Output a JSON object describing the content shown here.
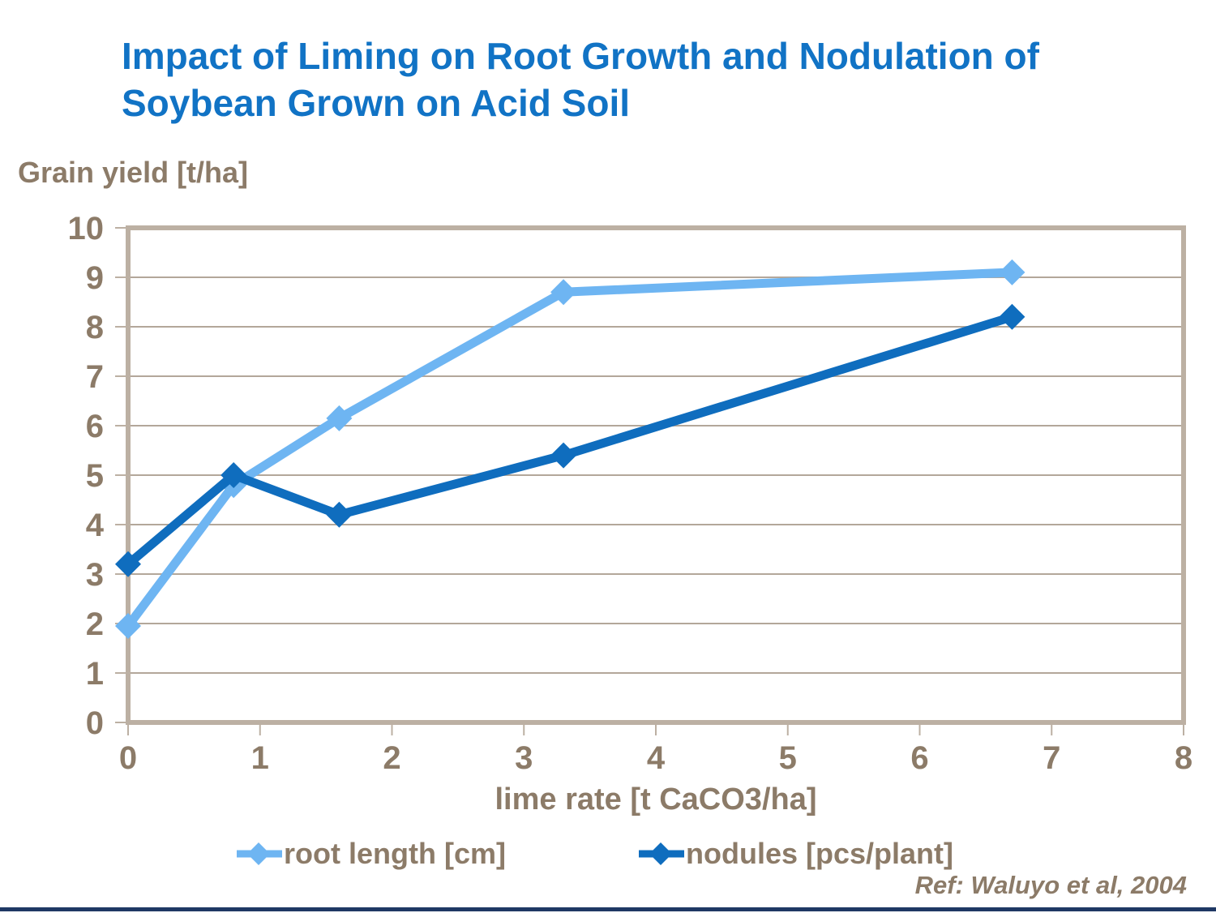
{
  "title": {
    "line1": "Impact of Liming on Root Growth and Nodulation of",
    "line2": "Soybean Grown on Acid Soil"
  },
  "colors": {
    "title_blue": "#1173C5",
    "text_brown": "#8C7B68",
    "gridline": "#B3A79A",
    "plot_border": "#BCB0A3",
    "series_root_length": "#6EB5F2",
    "series_nodules": "#0F6DBE",
    "footer_bar": "#1F3864"
  },
  "chart_data": {
    "type": "line",
    "title": "Impact of Liming on Root Growth and Nodulation of Soybean Grown on Acid Soil",
    "xlabel": "lime rate [t CaCO3/ha]",
    "ylabel": "Grain yield [t/ha]",
    "xlim": [
      0,
      8
    ],
    "ylim": [
      0,
      10
    ],
    "x_ticks": [
      0,
      1,
      2,
      3,
      4,
      5,
      6,
      7,
      8
    ],
    "y_ticks": [
      0,
      1,
      2,
      3,
      4,
      5,
      6,
      7,
      8,
      9,
      10
    ],
    "grid": "horizontal",
    "legend_position": "bottom",
    "x": [
      0,
      0.8,
      1.6,
      3.3,
      6.7
    ],
    "series": [
      {
        "name": "root length [cm]",
        "color": "#6EB5F2",
        "marker": "diamond",
        "values": [
          1.95,
          4.8,
          6.15,
          8.7,
          9.1
        ]
      },
      {
        "name": "nodules [pcs/plant]",
        "color": "#0F6DBE",
        "marker": "diamond",
        "values": [
          3.2,
          5.0,
          4.2,
          5.4,
          8.2
        ]
      }
    ],
    "reference": "Ref: Waluyo et al, 2004"
  }
}
